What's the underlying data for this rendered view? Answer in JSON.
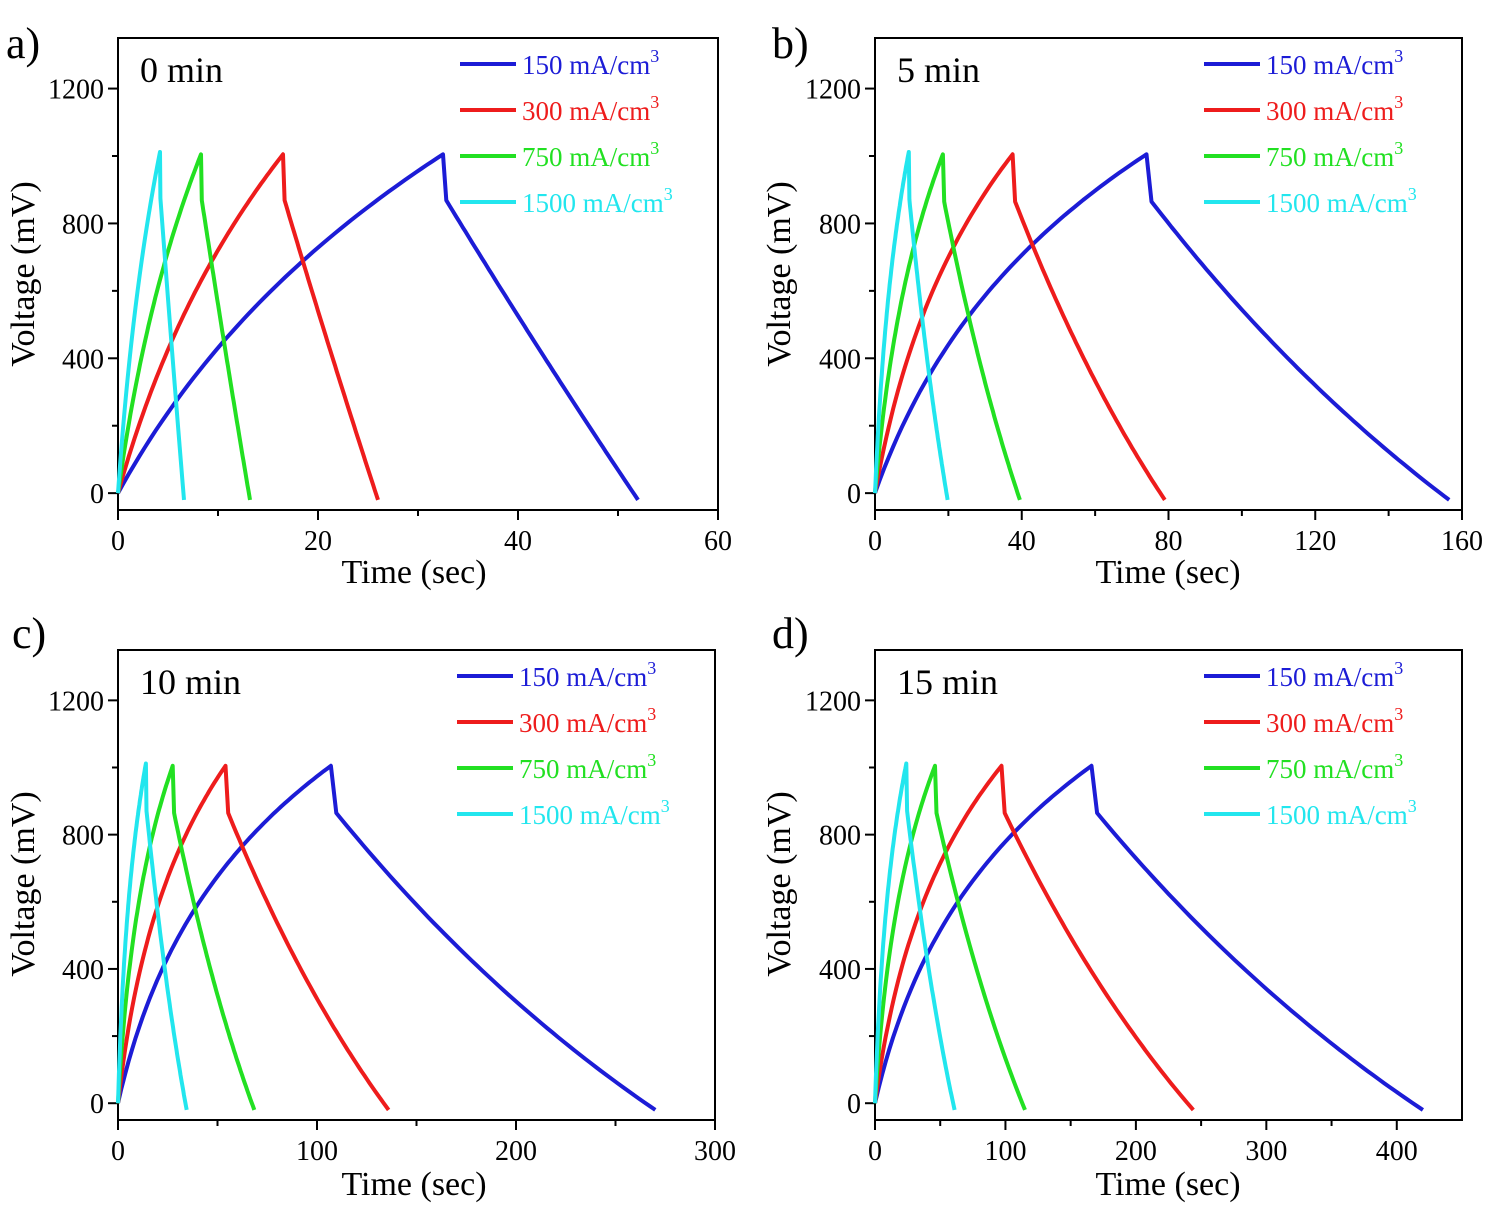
{
  "figure": {
    "panel_letters": [
      "a)",
      "b)",
      "c)",
      "d)"
    ]
  },
  "chart_data": [
    {
      "type": "line",
      "panel": "a)",
      "title": "0 min",
      "xlabel": "Time (sec)",
      "ylabel": "Voltage (mV)",
      "xlim": [
        0,
        60
      ],
      "ylim": [
        -50,
        1350
      ],
      "xticks": [
        0,
        20,
        40,
        60
      ],
      "yticks": [
        0,
        400,
        800,
        1200
      ],
      "grid": false,
      "legend_position": "top-right",
      "series": [
        {
          "name": "150 mA/cm3",
          "label_main": "150 mA/cm",
          "label_sup": "3",
          "color": "#1c1cd6",
          "charge_end": 32.5,
          "discharge_end": 52,
          "min_v": -20,
          "peak": 1005,
          "charge_shape": 0.55,
          "discharge_shape": 0.1
        },
        {
          "name": "300 mA/cm3",
          "label_main": "300 mA/cm",
          "label_sup": "3",
          "color": "#ee1c1c",
          "charge_end": 16.5,
          "discharge_end": 26,
          "min_v": -20,
          "peak": 1005,
          "charge_shape": 0.55,
          "discharge_shape": 0.1
        },
        {
          "name": "750 mA/cm3",
          "label_main": "750 mA/cm",
          "label_sup": "3",
          "color": "#22e022",
          "charge_end": 8.3,
          "discharge_end": 13.2,
          "min_v": -20,
          "peak": 1005,
          "charge_shape": 0.55,
          "discharge_shape": 0.1
        },
        {
          "name": "1500 mA/cm3",
          "label_main": "1500 mA/cm",
          "label_sup": "3",
          "color": "#22e6ee",
          "charge_end": 4.2,
          "discharge_end": 6.6,
          "min_v": -20,
          "peak": 1012,
          "charge_shape": 0.55,
          "discharge_shape": 0.1
        }
      ]
    },
    {
      "type": "line",
      "panel": "b)",
      "title": "5 min",
      "xlabel": "Time (sec)",
      "ylabel": "Voltage (mV)",
      "xlim": [
        0,
        160
      ],
      "ylim": [
        -50,
        1350
      ],
      "xticks": [
        0,
        40,
        80,
        120,
        160
      ],
      "yticks": [
        0,
        400,
        800,
        1200
      ],
      "grid": false,
      "legend_position": "top-right",
      "series": [
        {
          "name": "150 mA/cm3",
          "label_main": "150 mA/cm",
          "label_sup": "3",
          "color": "#1c1cd6",
          "charge_end": 74,
          "discharge_end": 156.5,
          "min_v": -20,
          "peak": 1005,
          "charge_shape": 0.3,
          "discharge_shape": 0.55
        },
        {
          "name": "300 mA/cm3",
          "label_main": "300 mA/cm",
          "label_sup": "3",
          "color": "#ee1c1c",
          "charge_end": 37.5,
          "discharge_end": 79,
          "min_v": -20,
          "peak": 1005,
          "charge_shape": 0.3,
          "discharge_shape": 0.55
        },
        {
          "name": "750 mA/cm3",
          "label_main": "750 mA/cm",
          "label_sup": "3",
          "color": "#22e022",
          "charge_end": 18.5,
          "discharge_end": 39.5,
          "min_v": -20,
          "peak": 1005,
          "charge_shape": 0.3,
          "discharge_shape": 0.55
        },
        {
          "name": "1500 mA/cm3",
          "label_main": "1500 mA/cm",
          "label_sup": "3",
          "color": "#22e6ee",
          "charge_end": 9.2,
          "discharge_end": 19.8,
          "min_v": -20,
          "peak": 1012,
          "charge_shape": 0.3,
          "discharge_shape": 0.55
        }
      ]
    },
    {
      "type": "line",
      "panel": "c)",
      "title": "10 min",
      "xlabel": "Time (sec)",
      "ylabel": "Voltage (mV)",
      "xlim": [
        0,
        300
      ],
      "ylim": [
        -50,
        1350
      ],
      "xticks": [
        0,
        100,
        200,
        300
      ],
      "yticks": [
        0,
        400,
        800,
        1200
      ],
      "grid": false,
      "legend_position": "top-right",
      "series": [
        {
          "name": "150 mA/cm3",
          "label_main": "150 mA/cm",
          "label_sup": "3",
          "color": "#1c1cd6",
          "charge_end": 107,
          "discharge_end": 270,
          "min_v": -20,
          "peak": 1005,
          "charge_shape": 0.2,
          "discharge_shape": 0.6
        },
        {
          "name": "300 mA/cm3",
          "label_main": "300 mA/cm",
          "label_sup": "3",
          "color": "#ee1c1c",
          "charge_end": 54,
          "discharge_end": 136,
          "min_v": -20,
          "peak": 1005,
          "charge_shape": 0.2,
          "discharge_shape": 0.6
        },
        {
          "name": "750 mA/cm3",
          "label_main": "750 mA/cm",
          "label_sup": "3",
          "color": "#22e022",
          "charge_end": 27.5,
          "discharge_end": 68.5,
          "min_v": -20,
          "peak": 1005,
          "charge_shape": 0.2,
          "discharge_shape": 0.6
        },
        {
          "name": "1500 mA/cm3",
          "label_main": "1500 mA/cm",
          "label_sup": "3",
          "color": "#22e6ee",
          "charge_end": 14,
          "discharge_end": 34.5,
          "min_v": -20,
          "peak": 1012,
          "charge_shape": 0.2,
          "discharge_shape": 0.6
        }
      ]
    },
    {
      "type": "line",
      "panel": "d)",
      "title": "15 min",
      "xlabel": "Time (sec)",
      "ylabel": "Voltage (mV)",
      "xlim": [
        0,
        450
      ],
      "ylim": [
        -50,
        1350
      ],
      "xticks": [
        0,
        100,
        200,
        300,
        400
      ],
      "yticks": [
        0,
        400,
        800,
        1200
      ],
      "grid": false,
      "legend_position": "top-right",
      "series": [
        {
          "name": "150 mA/cm3",
          "label_main": "150 mA/cm",
          "label_sup": "3",
          "color": "#1c1cd6",
          "charge_end": 166,
          "discharge_end": 420,
          "min_v": -20,
          "peak": 1005,
          "charge_shape": 0.2,
          "discharge_shape": 0.6
        },
        {
          "name": "300 mA/cm3",
          "label_main": "300 mA/cm",
          "label_sup": "3",
          "color": "#ee1c1c",
          "charge_end": 97,
          "discharge_end": 244,
          "min_v": -20,
          "peak": 1005,
          "charge_shape": 0.2,
          "discharge_shape": 0.6
        },
        {
          "name": "750 mA/cm3",
          "label_main": "750 mA/cm",
          "label_sup": "3",
          "color": "#22e022",
          "charge_end": 46,
          "discharge_end": 115,
          "min_v": -20,
          "peak": 1005,
          "charge_shape": 0.2,
          "discharge_shape": 0.6
        },
        {
          "name": "1500 mA/cm3",
          "label_main": "1500 mA/cm",
          "label_sup": "3",
          "color": "#22e6ee",
          "charge_end": 24,
          "discharge_end": 61,
          "min_v": -20,
          "peak": 1012,
          "charge_shape": 0.2,
          "discharge_shape": 0.6
        }
      ]
    }
  ]
}
